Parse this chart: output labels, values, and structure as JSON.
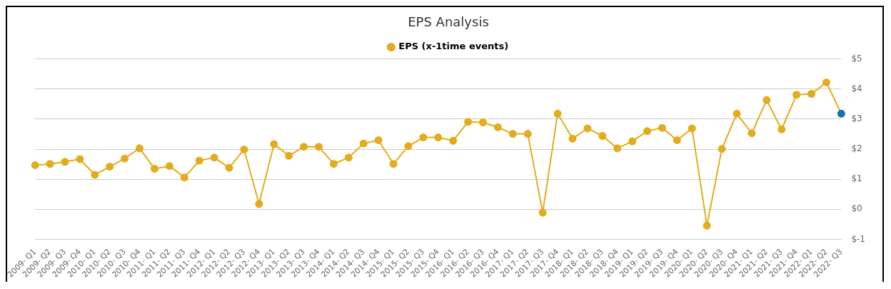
{
  "chart_data": {
    "type": "line",
    "title": "EPS Analysis",
    "categories": [
      "2009- Q1",
      "2009- Q2",
      "2009- Q3",
      "2009- Q4",
      "2010- Q1",
      "2010- Q2",
      "2010- Q3",
      "2010- Q4",
      "2011- Q1",
      "2011- Q2",
      "2011- Q3",
      "2011- Q4",
      "2012- Q1",
      "2012- Q2",
      "2012- Q3",
      "2012- Q4",
      "2013- Q1",
      "2013- Q2",
      "2013- Q3",
      "2013- Q4",
      "2014- Q1",
      "2014- Q2",
      "2014- Q3",
      "2014- Q4",
      "2015- Q1",
      "2015- Q2",
      "2015- Q3",
      "2015- Q4",
      "2016- Q1",
      "2016- Q2",
      "2016- Q3",
      "2016- Q4",
      "2017- Q1",
      "2017- Q2",
      "2017- Q3",
      "2017- Q4",
      "2018- Q1",
      "2018- Q2",
      "2018- Q3",
      "2018- Q4",
      "2019- Q1",
      "2019- Q2",
      "2019- Q3",
      "2019- Q4",
      "2020- Q1",
      "2020- Q2",
      "2020- Q3",
      "2020- Q4",
      "2021- Q1",
      "2021- Q2",
      "2021- Q3",
      "2021- Q4",
      "2022- Q1",
      "2022- Q2",
      "2022- Q3"
    ],
    "series": [
      {
        "name": "EPS (x-1time events)",
        "color": "#e3ac1d",
        "colors": [
          "#e3ac1d",
          "#e3ac1d",
          "#e3ac1d",
          "#e3ac1d",
          "#e3ac1d",
          "#e3ac1d",
          "#e3ac1d",
          "#e3ac1d",
          "#e3ac1d",
          "#e3ac1d",
          "#e3ac1d",
          "#e3ac1d",
          "#e3ac1d",
          "#e3ac1d",
          "#e3ac1d",
          "#e3ac1d",
          "#e3ac1d",
          "#e3ac1d",
          "#e3ac1d",
          "#e3ac1d",
          "#e3ac1d",
          "#e3ac1d",
          "#e3ac1d",
          "#e3ac1d",
          "#e3ac1d",
          "#e3ac1d",
          "#e3ac1d",
          "#e3ac1d",
          "#e3ac1d",
          "#e3ac1d",
          "#e3ac1d",
          "#e3ac1d",
          "#e3ac1d",
          "#e3ac1d",
          "#e3ac1d",
          "#e3ac1d",
          "#e3ac1d",
          "#e3ac1d",
          "#e3ac1d",
          "#e3ac1d",
          "#e3ac1d",
          "#e3ac1d",
          "#e3ac1d",
          "#e3ac1d",
          "#e3ac1d",
          "#e3ac1d",
          "#e3ac1d",
          "#e3ac1d",
          "#e3ac1d",
          "#e3ac1d",
          "#e3ac1d",
          "#e3ac1d",
          "#e3ac1d",
          "#e3ac1d",
          "#1a6faf"
        ],
        "values": [
          1.47,
          1.51,
          1.58,
          1.67,
          1.15,
          1.42,
          1.69,
          2.03,
          1.35,
          1.44,
          1.06,
          1.62,
          1.72,
          1.38,
          1.99,
          0.18,
          2.17,
          1.78,
          2.08,
          2.08,
          1.51,
          1.72,
          2.19,
          2.3,
          1.51,
          2.1,
          2.39,
          2.39,
          2.28,
          2.91,
          2.89,
          2.73,
          2.51,
          2.51,
          -0.11,
          3.18,
          2.35,
          2.69,
          2.44,
          2.03,
          2.26,
          2.6,
          2.71,
          2.3,
          2.69,
          -0.54,
          2.01,
          3.18,
          2.53,
          3.63,
          2.66,
          3.81,
          3.84,
          4.22,
          3.18
        ]
      }
    ],
    "ylim": [
      -1,
      5
    ],
    "yticks": [
      {
        "value": -1,
        "label": "$-1"
      },
      {
        "value": 0,
        "label": "$0"
      },
      {
        "value": 1,
        "label": "$1"
      },
      {
        "value": 2,
        "label": "$2"
      },
      {
        "value": 3,
        "label": "$3"
      },
      {
        "value": 4,
        "label": "$4"
      },
      {
        "value": 5,
        "label": "$5"
      }
    ],
    "grid": "y",
    "legend": "top",
    "marker": "circle",
    "line_style": "solid"
  }
}
